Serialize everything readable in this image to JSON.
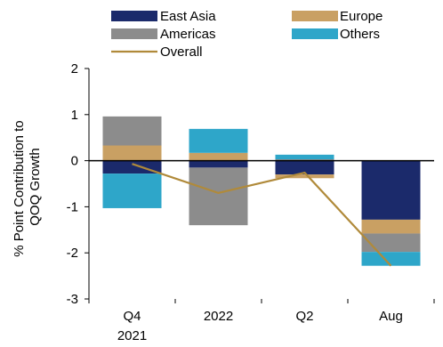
{
  "chart_data": {
    "type": "bar",
    "stacked": true,
    "categories": [
      [
        "Q4",
        "2021"
      ],
      [
        "2022"
      ],
      [
        "Q2"
      ],
      [
        "Aug"
      ]
    ],
    "ylabel": [
      "% Point Contribution to",
      "QOQ Growth"
    ],
    "ylim": [
      -3,
      2
    ],
    "yticks": [
      -3,
      -2,
      -1,
      0,
      1,
      2
    ],
    "legend_position": "top",
    "series": [
      {
        "name": "East Asia",
        "kind": "bar",
        "color": "#1b2a6b",
        "values": [
          -0.28,
          -0.15,
          -0.3,
          -1.28
        ]
      },
      {
        "name": "Europe",
        "kind": "bar",
        "color": "#c9a063",
        "values": [
          0.33,
          0.17,
          -0.08,
          -0.3
        ]
      },
      {
        "name": "Americas",
        "kind": "bar",
        "color": "#8c8c8c",
        "values": [
          0.63,
          -1.25,
          0.03,
          -0.4
        ]
      },
      {
        "name": "Others",
        "kind": "bar",
        "color": "#2ea6c9",
        "values": [
          -0.75,
          0.52,
          0.1,
          -0.3
        ]
      },
      {
        "name": "Overall",
        "kind": "line",
        "color": "#b08a3a",
        "values": [
          -0.07,
          -0.7,
          -0.26,
          -2.28
        ]
      }
    ]
  }
}
